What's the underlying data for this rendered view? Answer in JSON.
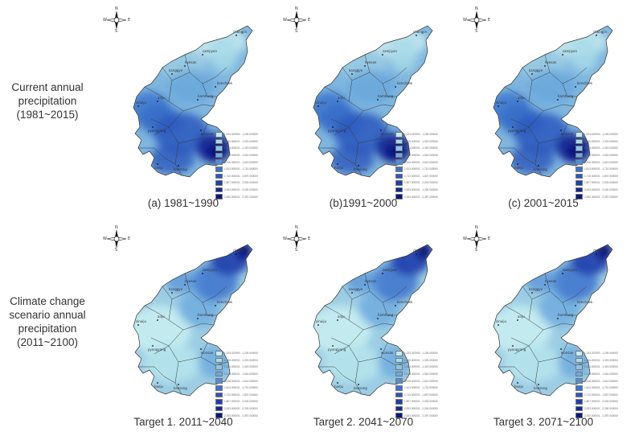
{
  "row_labels": {
    "top": [
      "Current annual",
      "precipitation",
      "(1981~2015)"
    ],
    "bottom": [
      "Climate change",
      "scenario annual",
      "precipitation",
      "(2011~2100)"
    ]
  },
  "compass": {
    "n": "N",
    "s": "S",
    "w": "W",
    "e": "E"
  },
  "panels": [
    {
      "caption": "(a) 1981~1990",
      "scenario": "current"
    },
    {
      "caption": "(b)1991~2000",
      "scenario": "current"
    },
    {
      "caption": "(c) 2001~2015",
      "scenario": "current"
    },
    {
      "caption": "Target 1. 2011~2040",
      "scenario": "future"
    },
    {
      "caption": "Target 2. 2041~2070",
      "scenario": "future"
    },
    {
      "caption": "Target 3. 2071~2100",
      "scenario": "future"
    }
  ],
  "legend": [
    {
      "label": "1,023.022900 - 1,226.000000",
      "color": "#c4ecf0"
    },
    {
      "label": "1,226.000001 - 1,323.000000",
      "color": "#a8dbe8"
    },
    {
      "label": "1,323.000001 - 1,419.000000",
      "color": "#8ac6e4"
    },
    {
      "label": "1,419.000001 - 1,516.000000",
      "color": "#6daade"
    },
    {
      "label": "1,516.000001 - 1,613.000000",
      "color": "#528ed7"
    },
    {
      "label": "1,613.000001 - 1,710.000000",
      "color": "#3d73cc"
    },
    {
      "label": "1,710.000001 - 1,807.000000",
      "color": "#2c58be"
    },
    {
      "label": "1,807.000001 - 2,003.000000",
      "color": "#1e3fac"
    },
    {
      "label": "2,003.000001 - 2,200.000000",
      "color": "#132896"
    },
    {
      "label": "2,200.000001 - 2,397.000000",
      "color": "#0b1880"
    }
  ],
  "cities": [
    "samjiyon",
    "hyesan",
    "chongjin",
    "kanggye",
    "kimchaek",
    "sinuiju",
    "hamhung",
    "anju",
    "pyongyang",
    "haeju",
    "kaesong",
    "wonsan"
  ]
}
